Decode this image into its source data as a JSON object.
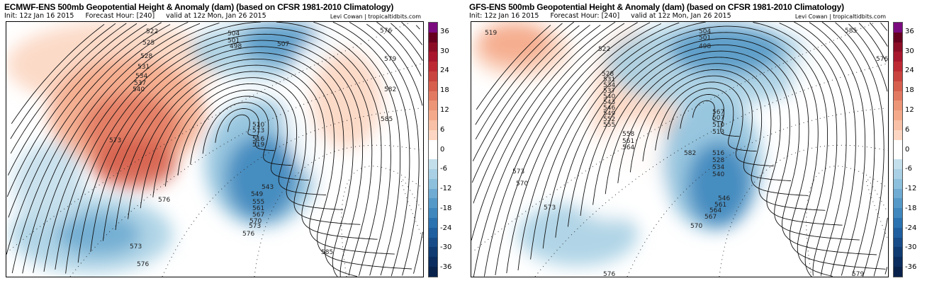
{
  "panels": [
    {
      "title": "ECMWF-ENS 500mb Geopotential Height & Anomaly (dam) (based on CFSR 1981-2010 Climatology)",
      "init": "Init: 12z Jan 16 2015",
      "forecast": "Forecast Hour: [240]",
      "valid": "valid at 12z Mon, Jan 26 2015",
      "credit": "Levi Cowan | tropicaltidbits.com",
      "contour_labels": [
        "522",
        "525",
        "528",
        "531",
        "534",
        "537",
        "540",
        "504",
        "501",
        "498",
        "507",
        "510",
        "513",
        "516",
        "519",
        "573",
        "576",
        "573",
        "576",
        "543",
        "549",
        "555",
        "561",
        "567",
        "570",
        "573",
        "576",
        "585",
        "576",
        "579",
        "582",
        "585"
      ]
    },
    {
      "title": "GFS-ENS 500mb Geopotential Height & Anomaly (dam) (based on CFSR 1981-2010 Climatology)",
      "init": "Init: 12z Jan 16 2015",
      "forecast": "Forecast Hour: [240]",
      "valid": "valid at 12z Mon, Jan 26 2015",
      "credit": "Levi Cowan | tropicaltidbits.com",
      "contour_labels": [
        "519",
        "522",
        "504",
        "501",
        "498",
        "528",
        "531",
        "534",
        "537",
        "540",
        "543",
        "546",
        "549",
        "552",
        "555",
        "558",
        "561",
        "564",
        "567",
        "507",
        "510",
        "513",
        "516",
        "528",
        "534",
        "540",
        "546",
        "561",
        "564",
        "567",
        "570",
        "573",
        "570",
        "573",
        "576",
        "579",
        "585",
        "576",
        "582"
      ]
    }
  ],
  "colorbar": {
    "ticks": [
      "36",
      "30",
      "24",
      "18",
      "12",
      "6",
      "0",
      "-6",
      "-12",
      "-18",
      "-24",
      "-30",
      "-36"
    ],
    "colors": [
      "#7a0a7d",
      "#67001f",
      "#8b0d26",
      "#a8172d",
      "#bd2a33",
      "#c9443f",
      "#d6604d",
      "#e27a62",
      "#ec9577",
      "#f4aa8a",
      "#f8c0a6",
      "#fcd6c2",
      "#ffffff",
      "#ffffff",
      "#c4dfec",
      "#a9d0e4",
      "#8dc0dc",
      "#6fabd2",
      "#5599c8",
      "#3f87bd",
      "#2b72b0",
      "#1f5e9f",
      "#174c88",
      "#0f3b72",
      "#0a2c5e",
      "#08214b"
    ]
  }
}
